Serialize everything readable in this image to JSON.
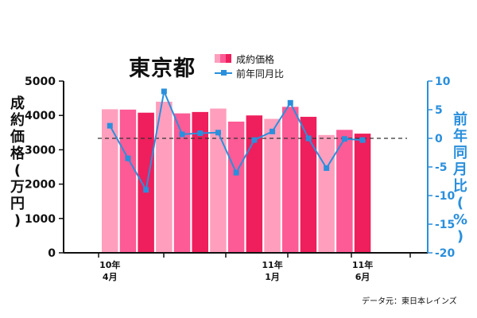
{
  "chart_data": {
    "type": "bar+line",
    "title": "東京都",
    "source": "データ元：東日本レインズ",
    "legend": [
      {
        "label": "成約価格",
        "kind": "bar"
      },
      {
        "label": "前年同月比",
        "kind": "line"
      }
    ],
    "ylabel_left": "成約価格(万円)",
    "ylabel_right": "前年同月比(%)",
    "y_left": {
      "min": 0,
      "max": 5000,
      "ticks": [
        0,
        1000,
        2000,
        3000,
        4000,
        5000
      ],
      "tick_labels": [
        "0",
        "1000",
        "2000",
        "3000",
        "4000",
        "5000"
      ]
    },
    "y_right": {
      "min": -20,
      "max": 10,
      "ticks": [
        10,
        5,
        0,
        -5,
        -10,
        -15,
        -20
      ],
      "tick_labels": [
        "10",
        "5",
        "0",
        "-5",
        "-10",
        "-15",
        "-20"
      ]
    },
    "x_labels": [
      {
        "index": 0,
        "line1": "10年",
        "line2": "4月"
      },
      {
        "index": 9,
        "line1": "11年",
        "line2": "1月"
      },
      {
        "index": 14,
        "line1": "11年",
        "line2": "6月"
      }
    ],
    "bar_values": [
      4180,
      4170,
      4080,
      4400,
      4060,
      4100,
      4200,
      3820,
      4000,
      3900,
      4250,
      3960,
      3430,
      3580,
      3470
    ],
    "bar_colors": [
      "#ff9fbd",
      "#fc5b95",
      "#ee1f5c"
    ],
    "line_values": [
      2.2,
      -3.5,
      -9.0,
      8.2,
      0.7,
      0.9,
      1.0,
      -6.0,
      -0.3,
      1.2,
      6.2,
      0.0,
      -5.2,
      -0.1,
      -0.3
    ],
    "line_color": "#2a8fdc",
    "reference_line_right": 0
  }
}
